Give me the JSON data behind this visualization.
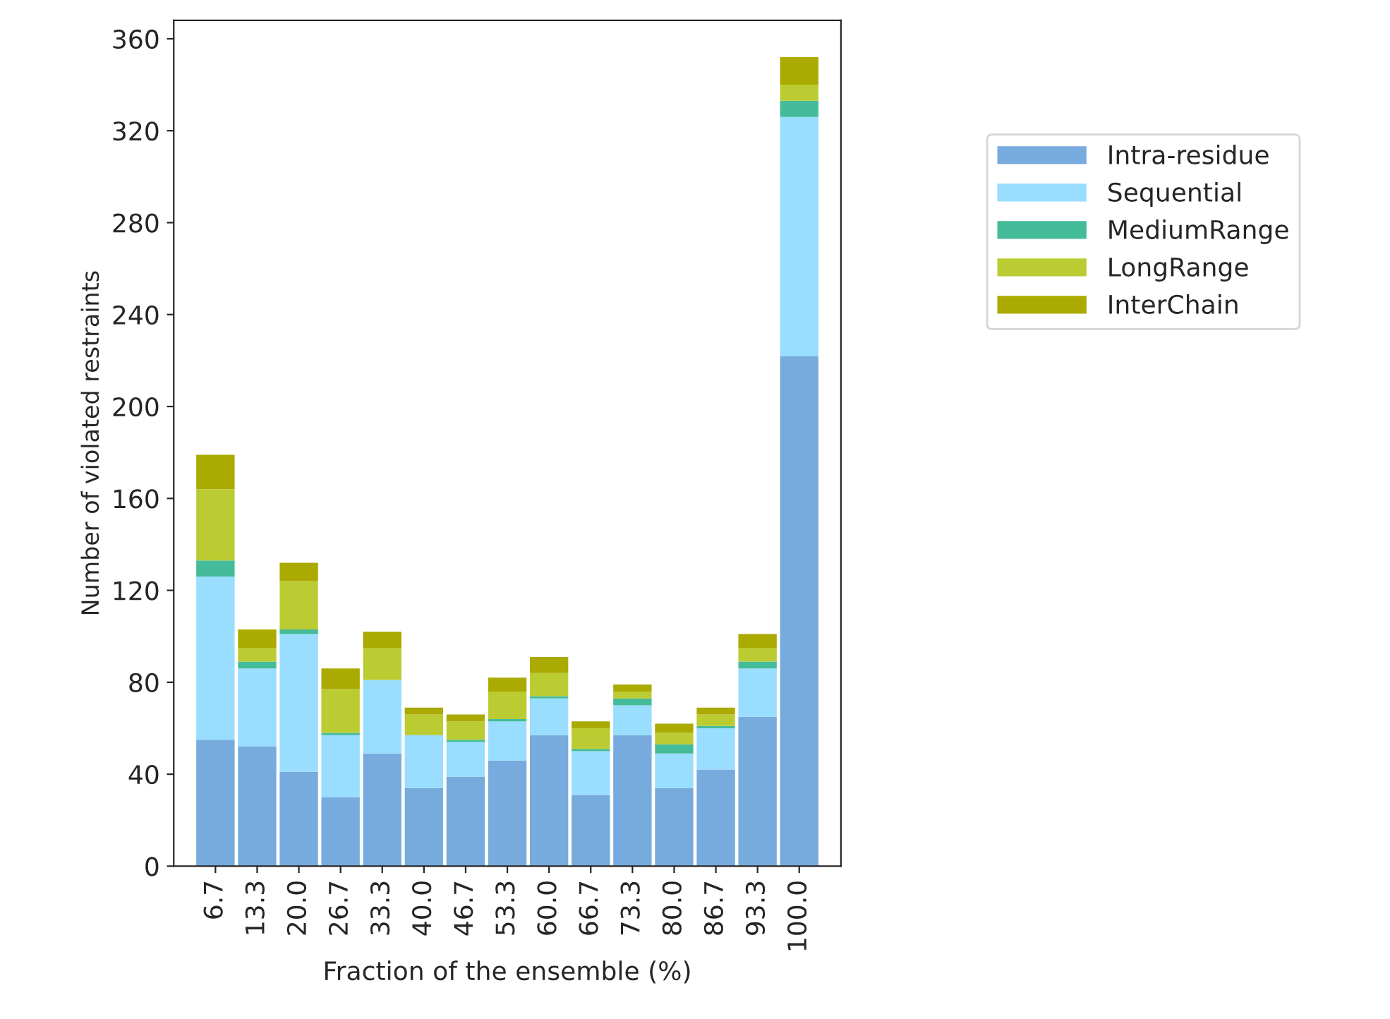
{
  "chart_data": {
    "type": "bar",
    "stacked": true,
    "xlabel": "Fraction of the ensemble (%)",
    "ylabel": "Number of violated restraints",
    "categories": [
      "6.7",
      "13.3",
      "20.0",
      "26.7",
      "33.3",
      "40.0",
      "46.7",
      "53.3",
      "60.0",
      "66.7",
      "73.3",
      "80.0",
      "86.7",
      "93.3",
      "100.0"
    ],
    "series": [
      {
        "name": "Intra-residue",
        "color": "#77aadd",
        "values": [
          55,
          52,
          41,
          30,
          49,
          34,
          39,
          46,
          57,
          31,
          57,
          34,
          42,
          65,
          222
        ]
      },
      {
        "name": "Sequential",
        "color": "#99ddff",
        "values": [
          71,
          34,
          60,
          27,
          32,
          23,
          15,
          17,
          16,
          19,
          13,
          15,
          18,
          21,
          104
        ]
      },
      {
        "name": "MediumRange",
        "color": "#44bb99",
        "values": [
          7,
          3,
          2,
          1,
          0,
          0,
          1,
          1,
          1,
          1,
          3,
          4,
          1,
          3,
          7
        ]
      },
      {
        "name": "LongRange",
        "color": "#bbcc33",
        "values": [
          31,
          6,
          21,
          19,
          14,
          9,
          8,
          12,
          10,
          9,
          3,
          5,
          5,
          6,
          7
        ]
      },
      {
        "name": "InterChain",
        "color": "#aaaa00",
        "values": [
          15,
          8,
          8,
          9,
          7,
          3,
          3,
          6,
          7,
          3,
          3,
          4,
          3,
          6,
          12
        ]
      }
    ],
    "ylim": [
      0,
      368
    ],
    "yticks": [
      0,
      40,
      80,
      120,
      160,
      200,
      240,
      280,
      320,
      360
    ],
    "grid": false,
    "legend": "right"
  }
}
